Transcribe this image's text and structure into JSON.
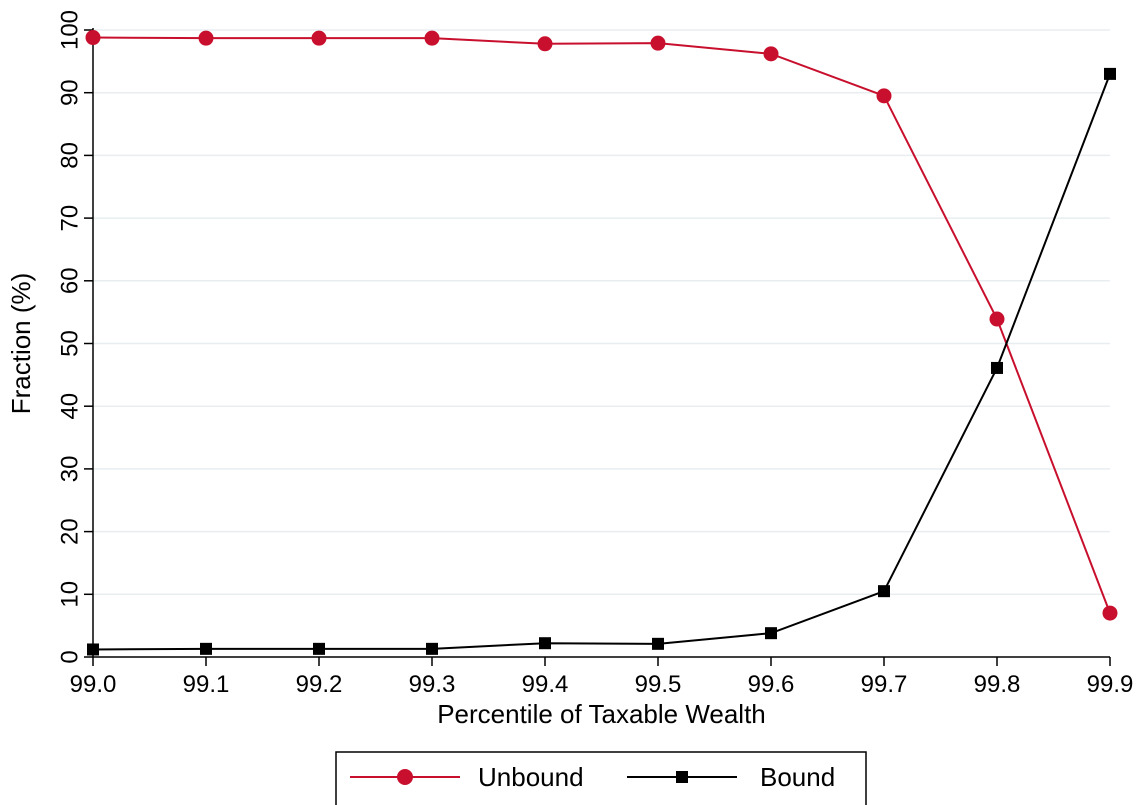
{
  "chart_data": {
    "type": "line",
    "title": "",
    "xlabel": "Percentile of Taxable Wealth",
    "ylabel": "Fraction (%)",
    "x": [
      99.0,
      99.1,
      99.2,
      99.3,
      99.4,
      99.5,
      99.6,
      99.7,
      99.8,
      99.9
    ],
    "x_tick_labels": [
      "99.0",
      "99.1",
      "99.2",
      "99.3",
      "99.4",
      "99.5",
      "99.6",
      "99.7",
      "99.8",
      "99.9"
    ],
    "xlim": [
      99.0,
      99.9
    ],
    "ylim": [
      0,
      100
    ],
    "y_ticks": [
      0,
      10,
      20,
      30,
      40,
      50,
      60,
      70,
      80,
      90,
      100
    ],
    "grid": true,
    "legend_position": "bottom",
    "series": [
      {
        "name": "Unbound",
        "color": "#c8102e",
        "marker": "circle",
        "values": [
          98.8,
          98.7,
          98.7,
          98.7,
          97.8,
          97.9,
          96.2,
          89.5,
          53.9,
          7.0
        ]
      },
      {
        "name": "Bound",
        "color": "#000000",
        "marker": "square",
        "values": [
          1.2,
          1.3,
          1.3,
          1.3,
          2.2,
          2.1,
          3.8,
          10.5,
          46.1,
          93.0
        ]
      }
    ]
  }
}
